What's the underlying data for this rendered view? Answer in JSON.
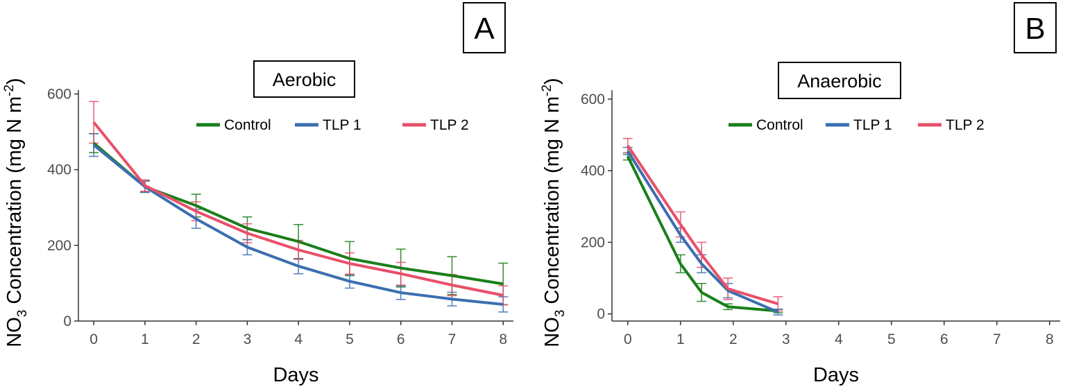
{
  "chart_data": [
    {
      "type": "line",
      "panel_label": "A",
      "title": "Aerobic",
      "xlabel": "Days",
      "ylabel_main": "NO",
      "ylabel_sub": "3",
      "ylabel_rest": " Concentration (mg N m",
      "ylabel_sup": "-2",
      "ylabel_end": ")",
      "xlim": [
        -0.3,
        8.2
      ],
      "ylim": [
        0,
        610
      ],
      "xticks": [
        0,
        1,
        2,
        3,
        4,
        5,
        6,
        7,
        8
      ],
      "yticks": [
        0,
        200,
        400,
        600
      ],
      "legend": [
        "Control",
        "TLP 1",
        "TLP 2"
      ],
      "series": [
        {
          "name": "Control",
          "color": "#1a7f1a",
          "x": [
            0,
            1,
            2,
            3,
            4,
            5,
            6,
            7,
            8
          ],
          "y": [
            470,
            355,
            305,
            245,
            210,
            165,
            140,
            120,
            98
          ],
          "err": [
            25,
            15,
            30,
            30,
            45,
            45,
            50,
            50,
            55
          ]
        },
        {
          "name": "TLP 1",
          "color": "#3a6fb0",
          "x": [
            0,
            1,
            2,
            3,
            4,
            5,
            6,
            7,
            8
          ],
          "y": [
            465,
            355,
            270,
            195,
            145,
            105,
            75,
            58,
            44
          ],
          "err": [
            30,
            15,
            25,
            20,
            20,
            18,
            18,
            18,
            20
          ]
        },
        {
          "name": "TLP 2",
          "color": "#e8506a",
          "x": [
            0,
            1,
            2,
            3,
            4,
            5,
            6,
            7,
            8
          ],
          "y": [
            525,
            358,
            290,
            232,
            188,
            152,
            125,
            95,
            68
          ],
          "err": [
            55,
            15,
            25,
            25,
            25,
            28,
            30,
            28,
            25
          ]
        }
      ]
    },
    {
      "type": "line",
      "panel_label": "B",
      "title": "Anaerobic",
      "xlabel": "Days",
      "ylabel_main": "NO",
      "ylabel_sub": "3",
      "ylabel_rest": " Concentration (mg N m",
      "ylabel_sup": "-2",
      "ylabel_end": ")",
      "xlim": [
        -0.3,
        8.2
      ],
      "ylim": [
        -20,
        625
      ],
      "xticks": [
        0,
        1,
        2,
        3,
        4,
        5,
        6,
        7,
        8
      ],
      "yticks": [
        0,
        200,
        400,
        600
      ],
      "legend": [
        "Control",
        "TLP 1",
        "TLP 2"
      ],
      "series": [
        {
          "name": "Control",
          "color": "#1a7f1a",
          "x": [
            0,
            1,
            1.4,
            1.9,
            2.85
          ],
          "y": [
            440,
            140,
            60,
            20,
            8
          ],
          "err": [
            10,
            25,
            25,
            8,
            5
          ]
        },
        {
          "name": "TLP 1",
          "color": "#3a6fb0",
          "x": [
            0,
            1,
            1.4,
            1.9,
            2.85
          ],
          "y": [
            455,
            220,
            140,
            65,
            5
          ],
          "err": [
            10,
            20,
            25,
            20,
            8
          ]
        },
        {
          "name": "TLP 2",
          "color": "#e8506a",
          "x": [
            0,
            1,
            1.4,
            1.9,
            2.85
          ],
          "y": [
            470,
            250,
            165,
            70,
            28
          ],
          "err": [
            20,
            35,
            35,
            30,
            20
          ]
        }
      ]
    }
  ]
}
